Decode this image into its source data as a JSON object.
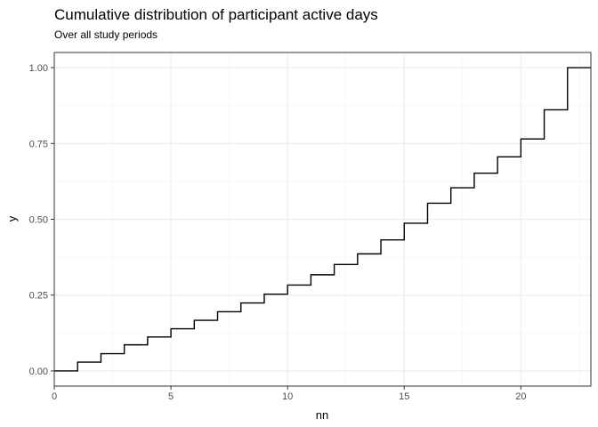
{
  "chart_data": {
    "type": "line",
    "subtype": "step-ecdf",
    "title": "Cumulative distribution of participant active days",
    "subtitle": "Over all study periods",
    "xlabel": "nn",
    "ylabel": "y",
    "xlim": [
      0,
      23
    ],
    "ylim": [
      0,
      1
    ],
    "x_ticks": [
      0,
      5,
      10,
      15,
      20
    ],
    "x_tick_labels": [
      "0",
      "5",
      "10",
      "15",
      "20"
    ],
    "y_ticks": [
      0,
      0.25,
      0.5,
      0.75,
      1
    ],
    "y_tick_labels": [
      "0.00",
      "0.25",
      "0.50",
      "0.75",
      "1.00"
    ],
    "grid": true,
    "series": [
      {
        "x": [
          0,
          1,
          2,
          3,
          4,
          5,
          6,
          7,
          8,
          9,
          10,
          11,
          12,
          13,
          14,
          15,
          16,
          17,
          18,
          19,
          20,
          21,
          22,
          23
        ],
        "values": [
          0.0,
          0.029,
          0.057,
          0.086,
          0.112,
          0.139,
          0.167,
          0.195,
          0.224,
          0.253,
          0.283,
          0.317,
          0.351,
          0.386,
          0.432,
          0.487,
          0.553,
          0.604,
          0.652,
          0.706,
          0.765,
          0.861,
          1.0,
          1.0
        ]
      }
    ]
  }
}
